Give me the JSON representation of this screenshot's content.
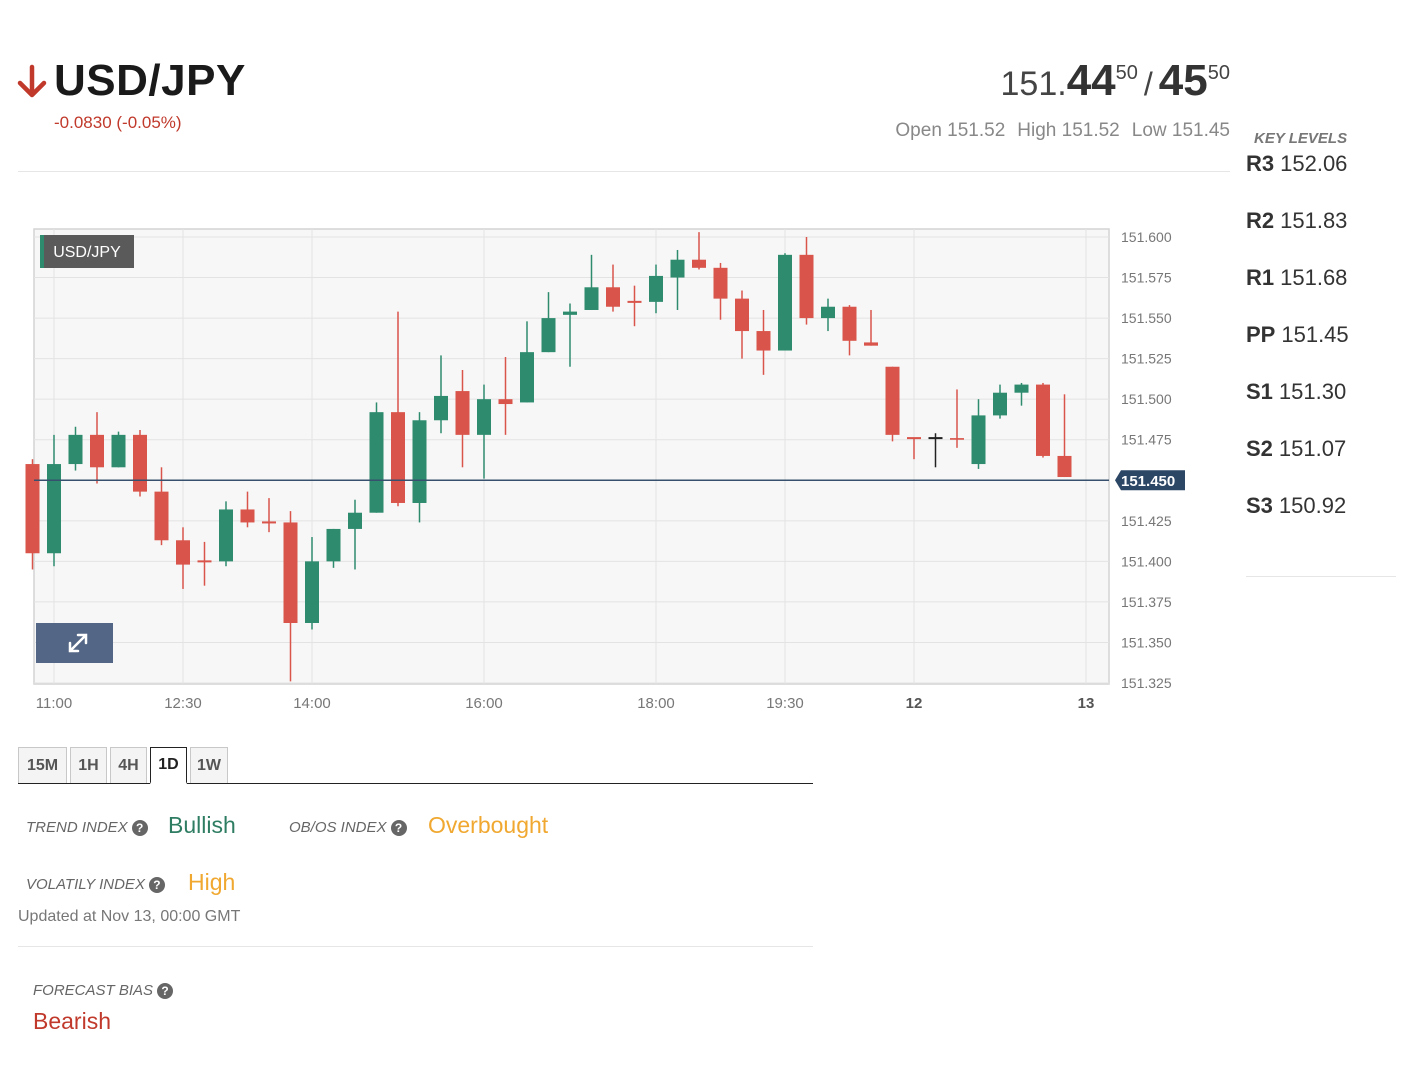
{
  "header": {
    "pair": "USD/JPY",
    "change": "-0.0830 (-0.05%)",
    "arrow_icon": "arrow-down-icon",
    "down_color": "#c0392b"
  },
  "quote": {
    "bid_prefix": "151.",
    "bid_big": "44",
    "bid_sup": "50",
    "separator": "/",
    "ask_big": "45",
    "ask_sup": "50"
  },
  "ohl": {
    "open": "Open 151.52",
    "high": "High 151.52",
    "low": "Low 151.45"
  },
  "key_levels": {
    "title": "KEY LEVELS",
    "items": [
      {
        "label": "R3",
        "value": "152.06"
      },
      {
        "label": "R2",
        "value": "151.83"
      },
      {
        "label": "R1",
        "value": "151.68"
      },
      {
        "label": "PP",
        "value": "151.45"
      },
      {
        "label": "S1",
        "value": "151.30"
      },
      {
        "label": "S2",
        "value": "151.07"
      },
      {
        "label": "S3",
        "value": "150.92"
      }
    ]
  },
  "chart_data": {
    "type": "candlestick",
    "instrument_label": "USD/JPY",
    "current_price_label": "151.450",
    "current_price": 151.45,
    "ylim": [
      151.325,
      151.6
    ],
    "y_ticks": [
      "151.600",
      "151.575",
      "151.550",
      "151.525",
      "151.500",
      "151.475",
      "151.450",
      "151.425",
      "151.400",
      "151.375",
      "151.350",
      "151.325"
    ],
    "x_ticks": [
      {
        "label": "11:00",
        "index": 1
      },
      {
        "label": "12:30",
        "index": 7
      },
      {
        "label": "14:00",
        "index": 13
      },
      {
        "label": "16:00",
        "index": 21
      },
      {
        "label": "18:00",
        "index": 29
      },
      {
        "label": "19:30",
        "index": 35
      },
      {
        "label": "12",
        "index": 41,
        "bold": true
      },
      {
        "label": "13",
        "index": 49,
        "bold": true
      }
    ],
    "grid": true,
    "up_color": "#2e8b6e",
    "down_color": "#d9544a",
    "candles": [
      {
        "o": 151.46,
        "h": 151.463,
        "l": 151.395,
        "c": 151.405
      },
      {
        "o": 151.405,
        "h": 151.478,
        "l": 151.397,
        "c": 151.46
      },
      {
        "o": 151.46,
        "h": 151.483,
        "l": 151.456,
        "c": 151.478
      },
      {
        "o": 151.478,
        "h": 151.492,
        "l": 151.448,
        "c": 151.458
      },
      {
        "o": 151.458,
        "h": 151.48,
        "l": 151.458,
        "c": 151.478
      },
      {
        "o": 151.478,
        "h": 151.481,
        "l": 151.44,
        "c": 151.443
      },
      {
        "o": 151.443,
        "h": 151.458,
        "l": 151.41,
        "c": 151.413
      },
      {
        "o": 151.413,
        "h": 151.421,
        "l": 151.383,
        "c": 151.398
      },
      {
        "o": 151.4,
        "h": 151.412,
        "l": 151.385,
        "c": 151.4
      },
      {
        "o": 151.4,
        "h": 151.437,
        "l": 151.397,
        "c": 151.432
      },
      {
        "o": 151.432,
        "h": 151.443,
        "l": 151.421,
        "c": 151.424
      },
      {
        "o": 151.424,
        "h": 151.439,
        "l": 151.418,
        "c": 151.424
      },
      {
        "o": 151.424,
        "h": 151.431,
        "l": 151.326,
        "c": 151.362
      },
      {
        "o": 151.362,
        "h": 151.415,
        "l": 151.358,
        "c": 151.4
      },
      {
        "o": 151.4,
        "h": 151.42,
        "l": 151.396,
        "c": 151.42
      },
      {
        "o": 151.42,
        "h": 151.438,
        "l": 151.395,
        "c": 151.43
      },
      {
        "o": 151.43,
        "h": 151.498,
        "l": 151.43,
        "c": 151.492
      },
      {
        "o": 151.492,
        "h": 151.554,
        "l": 151.434,
        "c": 151.436
      },
      {
        "o": 151.436,
        "h": 151.492,
        "l": 151.424,
        "c": 151.487
      },
      {
        "o": 151.487,
        "h": 151.527,
        "l": 151.479,
        "c": 151.502
      },
      {
        "o": 151.505,
        "h": 151.518,
        "l": 151.458,
        "c": 151.478
      },
      {
        "o": 151.478,
        "h": 151.509,
        "l": 151.451,
        "c": 151.5
      },
      {
        "o": 151.5,
        "h": 151.526,
        "l": 151.478,
        "c": 151.497
      },
      {
        "o": 151.498,
        "h": 151.548,
        "l": 151.498,
        "c": 151.529
      },
      {
        "o": 151.529,
        "h": 151.566,
        "l": 151.529,
        "c": 151.55
      },
      {
        "o": 151.552,
        "h": 151.559,
        "l": 151.52,
        "c": 151.554
      },
      {
        "o": 151.555,
        "h": 151.589,
        "l": 151.555,
        "c": 151.569
      },
      {
        "o": 151.569,
        "h": 151.583,
        "l": 151.554,
        "c": 151.557
      },
      {
        "o": 151.56,
        "h": 151.57,
        "l": 151.545,
        "c": 151.56
      },
      {
        "o": 151.56,
        "h": 151.583,
        "l": 151.553,
        "c": 151.576
      },
      {
        "o": 151.575,
        "h": 151.592,
        "l": 151.555,
        "c": 151.586
      },
      {
        "o": 151.586,
        "h": 151.603,
        "l": 151.58,
        "c": 151.581
      },
      {
        "o": 151.581,
        "h": 151.584,
        "l": 151.549,
        "c": 151.562
      },
      {
        "o": 151.562,
        "h": 151.567,
        "l": 151.525,
        "c": 151.542
      },
      {
        "o": 151.542,
        "h": 151.555,
        "l": 151.515,
        "c": 151.53
      },
      {
        "o": 151.53,
        "h": 151.59,
        "l": 151.53,
        "c": 151.589
      },
      {
        "o": 151.589,
        "h": 151.6,
        "l": 151.546,
        "c": 151.55
      },
      {
        "o": 151.55,
        "h": 151.562,
        "l": 151.542,
        "c": 151.557
      },
      {
        "o": 151.557,
        "h": 151.558,
        "l": 151.527,
        "c": 151.536
      },
      {
        "o": 151.535,
        "h": 151.555,
        "l": 151.533,
        "c": 151.533
      },
      {
        "o": 151.52,
        "h": 151.52,
        "l": 151.474,
        "c": 151.478
      },
      {
        "o": 151.476,
        "h": 151.476,
        "l": 151.463,
        "c": 151.476
      },
      {
        "o": 151.476,
        "h": 151.479,
        "l": 151.458,
        "c": 151.476,
        "black": true
      },
      {
        "o": 151.476,
        "h": 151.506,
        "l": 151.47,
        "c": 151.475
      },
      {
        "o": 151.46,
        "h": 151.5,
        "l": 151.457,
        "c": 151.49
      },
      {
        "o": 151.49,
        "h": 151.509,
        "l": 151.488,
        "c": 151.504
      },
      {
        "o": 151.504,
        "h": 151.51,
        "l": 151.496,
        "c": 151.509
      },
      {
        "o": 151.509,
        "h": 151.51,
        "l": 151.464,
        "c": 151.465
      },
      {
        "o": 151.465,
        "h": 151.503,
        "l": 151.452,
        "c": 151.452
      }
    ]
  },
  "timeframes": [
    {
      "label": "15M",
      "active": false
    },
    {
      "label": "1H",
      "active": false
    },
    {
      "label": "4H",
      "active": false
    },
    {
      "label": "1D",
      "active": true
    },
    {
      "label": "1W",
      "active": false
    }
  ],
  "indices": {
    "trend_label": "TREND INDEX",
    "trend_value": "Bullish",
    "trend_color": "#2e7d63",
    "obos_label": "OB/OS INDEX",
    "obos_value": "Overbought",
    "obos_color": "#f0a830",
    "volatility_label": "VOLATILY INDEX",
    "volatility_value": "High",
    "volatility_color": "#f0a830",
    "updated": "Updated at Nov 13, 00:00 GMT",
    "forecast_label": "FORECAST BIAS",
    "forecast_value": "Bearish",
    "forecast_color": "#c0392b",
    "help_icon": "question-circle-icon"
  }
}
